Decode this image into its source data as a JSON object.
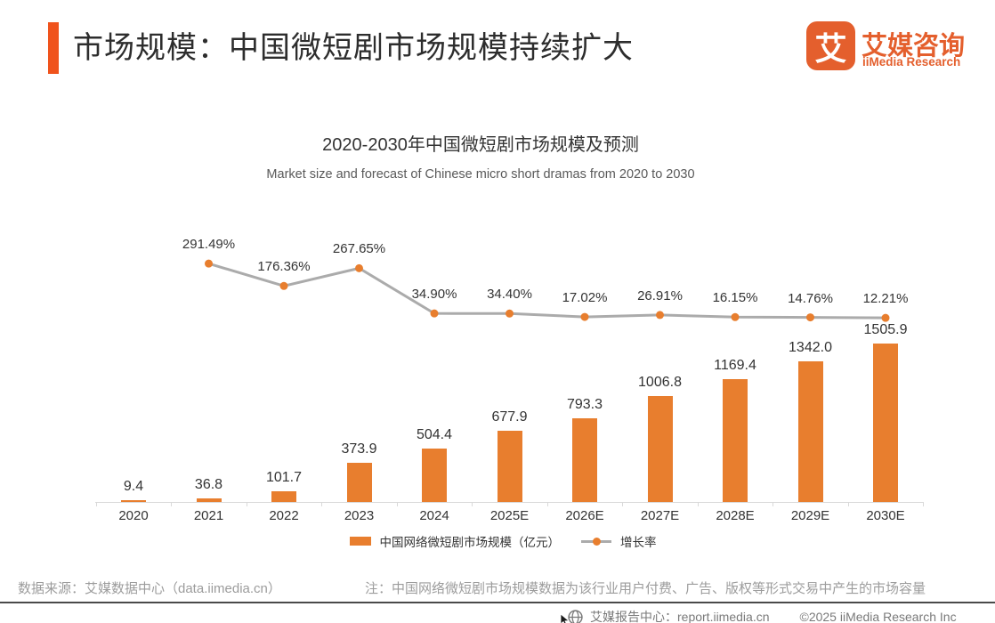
{
  "header": {
    "title": "市场规模：中国微短剧市场规模持续扩大",
    "logo": {
      "mark": "艾",
      "name_cn": "艾媒咨询",
      "name_en": "iiMedia Research"
    }
  },
  "chart_data": {
    "type": "bar+line",
    "title": "2020-2030年中国微短剧市场规模及预测",
    "subtitle": "Market size and forecast of Chinese micro short dramas from 2020 to 2030",
    "categories": [
      "2020",
      "2021",
      "2022",
      "2023",
      "2024",
      "2025E",
      "2026E",
      "2027E",
      "2028E",
      "2029E",
      "2030E"
    ],
    "series": [
      {
        "name": "中国网络微短剧市场规模（亿元）",
        "type": "bar",
        "unit": "亿元",
        "color": "#E87E2E",
        "values": [
          9.4,
          36.8,
          101.7,
          373.9,
          504.4,
          677.9,
          793.3,
          1006.8,
          1169.4,
          1342.0,
          1505.9
        ],
        "labels": [
          "9.4",
          "36.8",
          "101.7",
          "373.9",
          "504.4",
          "677.9",
          "793.3",
          "1006.8",
          "1169.4",
          "1342.0",
          "1505.9"
        ]
      },
      {
        "name": "增长率",
        "type": "line",
        "unit": "%",
        "line_color": "#ABABAB",
        "marker_color": "#E87E2E",
        "values": [
          null,
          291.49,
          176.36,
          267.65,
          34.9,
          34.4,
          17.02,
          26.91,
          16.15,
          14.76,
          12.21
        ],
        "labels": [
          null,
          "291.49%",
          "176.36%",
          "267.65%",
          "34.90%",
          "34.40%",
          "17.02%",
          "26.91%",
          "16.15%",
          "14.76%",
          "12.21%"
        ]
      }
    ],
    "legend_position": "bottom",
    "grid": false,
    "y_axis_visible": false
  },
  "footer": {
    "source": "数据来源：艾媒数据中心（data.iimedia.cn）",
    "note": "注：中国网络微短剧市场规模数据为该行业用户付费、广告、版权等形式交易中产生的市场容量",
    "report_center": "艾媒报告中心：report.iimedia.cn",
    "copyright": "©2025  iiMedia Research Inc"
  },
  "colors": {
    "accent": "#F0531C",
    "bar": "#E87E2E",
    "line": "#ABABAB",
    "logo": "#E45F2D"
  }
}
